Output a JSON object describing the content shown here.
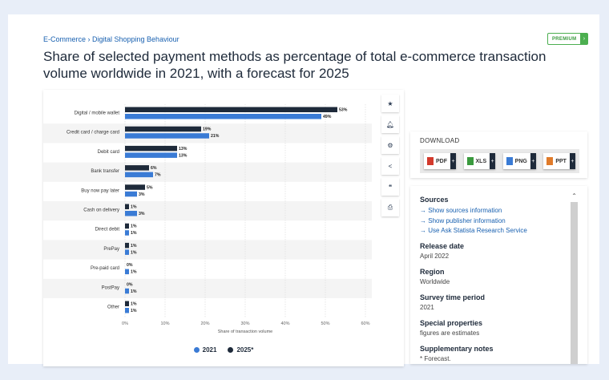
{
  "breadcrumb": "E-Commerce › Digital Shopping Behaviour",
  "premium_label": "PREMIUM",
  "premium_arrow": "›",
  "title": "Share of selected payment methods as percentage of total e-commerce transaction volume worldwide in 2021, with a forecast for 2025",
  "colors": {
    "series_2021": "#3a7bd5",
    "series_2025": "#1e2a3a",
    "premium": "#4caf50",
    "link": "#1860b0"
  },
  "toolbar": [
    {
      "name": "favorite-star-icon",
      "glyph": "★"
    },
    {
      "name": "notification-bell-icon",
      "glyph": "🔔︎"
    },
    {
      "name": "settings-gear-icon",
      "glyph": "⚙"
    },
    {
      "name": "share-icon",
      "glyph": "<"
    },
    {
      "name": "cite-quote-icon",
      "glyph": "❝"
    },
    {
      "name": "print-icon",
      "glyph": "⎙"
    }
  ],
  "download": {
    "heading": "DOWNLOAD",
    "buttons": [
      {
        "label": "PDF",
        "color": "#d33a2c"
      },
      {
        "label": "XLS",
        "color": "#3a9a3e"
      },
      {
        "label": "PNG",
        "color": "#3a7bd5"
      },
      {
        "label": "PPT",
        "color": "#e07b2a"
      }
    ],
    "plus": "+"
  },
  "info": {
    "sources_heading": "Sources",
    "source_links": [
      "Show sources information",
      "Show publisher information",
      "Use Ask Statista Research Service"
    ],
    "link_arrow": "→",
    "release_heading": "Release date",
    "release_value": "April 2022",
    "region_heading": "Region",
    "region_value": "Worldwide",
    "survey_heading": "Survey time period",
    "survey_value": "2021",
    "special_heading": "Special properties",
    "special_value": "figures are estimates",
    "notes_heading": "Supplementary notes",
    "notes_value": "* Forecast."
  },
  "chart_data": {
    "type": "bar",
    "orientation": "horizontal",
    "title": "",
    "xlabel": "Share of transaction volume",
    "ylabel": "",
    "xlim": [
      0,
      60
    ],
    "xticks": [
      "0%",
      "10%",
      "20%",
      "30%",
      "40%",
      "50%",
      "60%"
    ],
    "xtick_values": [
      0,
      10,
      20,
      30,
      40,
      50,
      60
    ],
    "categories": [
      "Digital / mobile wallet",
      "Credit card / charge card",
      "Debit card",
      "Bank transfer",
      "Buy now pay later",
      "Cash on delivery",
      "Direct debit",
      "PrePay",
      "Pre-paid card",
      "PostPay",
      "Other"
    ],
    "series": [
      {
        "name": "2025*",
        "values": [
          53,
          19,
          13,
          6,
          5,
          1,
          1,
          1,
          0,
          0,
          1
        ],
        "labels": [
          "53%",
          "19%",
          "13%",
          "6%",
          "5%",
          "1%",
          "1%",
          "1%",
          "0%",
          "0%",
          "1%"
        ]
      },
      {
        "name": "2021",
        "values": [
          49,
          21,
          13,
          7,
          3,
          3,
          1,
          1,
          1,
          1,
          1
        ],
        "labels": [
          "49%",
          "21%",
          "13%",
          "7%",
          "3%",
          "3%",
          "1%",
          "1%",
          "1%",
          "1%",
          "1%"
        ]
      }
    ],
    "legend": [
      "2021",
      "2025*"
    ],
    "legend_position": "bottom",
    "grid": true
  }
}
